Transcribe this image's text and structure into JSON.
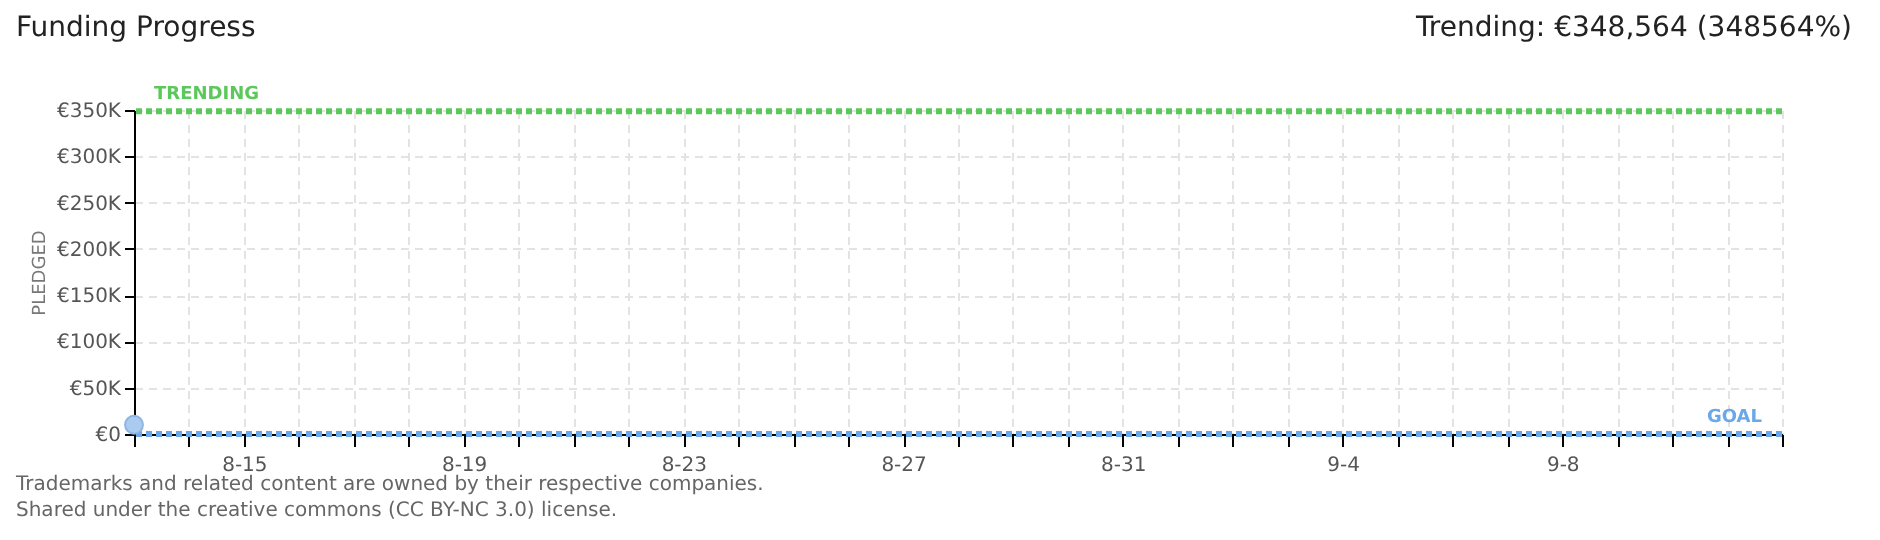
{
  "chart_data": {
    "type": "scatter",
    "title": "Funding Progress",
    "subtitle": "Trending: €348,564 (348564%)",
    "ylabel": "PLEDGED",
    "x": [
      "--08-13"
    ],
    "series": [
      {
        "color": "#aacbf0",
        "values": [
          10000
        ]
      }
    ],
    "marker": "circle",
    "grid": true,
    "xlim": [
      "--08-13",
      "--09-12"
    ],
    "xticks": [
      {
        "value": "--08-13",
        "label": null
      },
      {
        "value": "--08-14",
        "label": null
      },
      {
        "value": "--08-15",
        "label": "8-15"
      },
      {
        "value": "--08-16",
        "label": null
      },
      {
        "value": "--08-17",
        "label": null
      },
      {
        "value": "--08-18",
        "label": null
      },
      {
        "value": "--08-19",
        "label": "8-19"
      },
      {
        "value": "--08-20",
        "label": null
      },
      {
        "value": "--08-21",
        "label": null
      },
      {
        "value": "--08-22",
        "label": null
      },
      {
        "value": "--08-23",
        "label": "8-23"
      },
      {
        "value": "--08-24",
        "label": null
      },
      {
        "value": "--08-25",
        "label": null
      },
      {
        "value": "--08-26",
        "label": null
      },
      {
        "value": "--08-27",
        "label": "8-27"
      },
      {
        "value": "--08-28",
        "label": null
      },
      {
        "value": "--08-29",
        "label": null
      },
      {
        "value": "--08-30",
        "label": null
      },
      {
        "value": "--08-31",
        "label": "8-31"
      },
      {
        "value": "--09-01",
        "label": null
      },
      {
        "value": "--09-02",
        "label": null
      },
      {
        "value": "--09-03",
        "label": null
      },
      {
        "value": "--09-04",
        "label": "9-4"
      },
      {
        "value": "--09-05",
        "label": null
      },
      {
        "value": "--09-06",
        "label": null
      },
      {
        "value": "--09-07",
        "label": null
      },
      {
        "value": "--09-08",
        "label": "9-8"
      },
      {
        "value": "--09-09",
        "label": null
      },
      {
        "value": "--09-10",
        "label": null
      },
      {
        "value": "--09-11",
        "label": null
      },
      {
        "value": "--09-12",
        "label": null
      }
    ],
    "ylim": [
      0,
      350000
    ],
    "yticks": [
      {
        "value": 0,
        "label": "€0"
      },
      {
        "value": 50000,
        "label": "€50K"
      },
      {
        "value": 100000,
        "label": "€100K"
      },
      {
        "value": 150000,
        "label": "€150K"
      },
      {
        "value": 200000,
        "label": "€200K"
      },
      {
        "value": 250000,
        "label": "€250K"
      },
      {
        "value": 300000,
        "label": "€300K"
      },
      {
        "value": 350000,
        "label": "€350K"
      }
    ],
    "ref_lines": [
      {
        "axis": "y",
        "value": 348564,
        "label": "TRENDING",
        "color": "#5cc85c",
        "line_style": "dotted"
      },
      {
        "axis": "y",
        "value": 100,
        "label": "GOAL",
        "color": "#6aa8e8",
        "line_style": "dotted"
      }
    ],
    "annotations": [
      "Trademarks and related content are owned by their respective companies.",
      "Shared under the creative commons (CC BY-NC 3.0) license."
    ]
  }
}
